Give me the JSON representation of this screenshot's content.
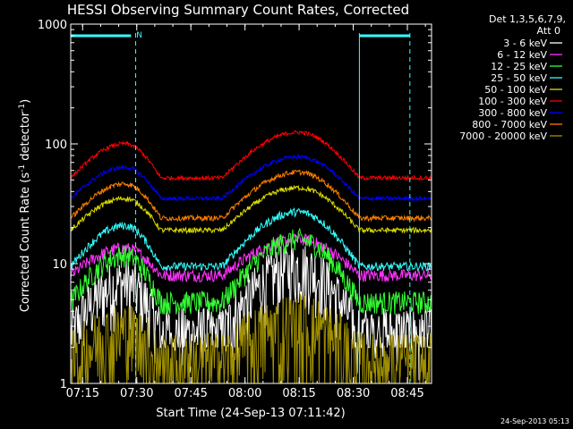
{
  "chart_data": {
    "type": "line",
    "title": "HESSI Observing Summary Count Rates, Corrected",
    "xlabel": "Start Time (24-Sep-13 07:11:42)",
    "ylabel_main": "Corrected Count Rate (s",
    "ylabel_sup1": "-1",
    "ylabel_mid": " detector",
    "ylabel_sup2": "-1",
    "ylabel_end": ")",
    "yscale": "log",
    "ylim": [
      1,
      1000
    ],
    "xlim_minutes": [
      0,
      100
    ],
    "x_ticks": [
      {
        "label": "07:15",
        "min": 3.3
      },
      {
        "label": "07:30",
        "min": 18.3
      },
      {
        "label": "07:45",
        "min": 33.3
      },
      {
        "label": "08:00",
        "min": 48.3
      },
      {
        "label": "08:15",
        "min": 63.3
      },
      {
        "label": "08:30",
        "min": 78.3
      },
      {
        "label": "08:45",
        "min": 93.3
      }
    ],
    "y_ticks": [
      {
        "label": "1",
        "value": 1
      },
      {
        "label": "10",
        "value": 10
      },
      {
        "label": "100",
        "value": 100
      },
      {
        "label": "1000",
        "value": 1000
      }
    ],
    "legend_header": [
      "Det 1,3,5,6,7,9,",
      "Att 0"
    ],
    "legend_position": "right",
    "series": [
      {
        "name": "3 - 6 keV",
        "color": "#ffffff",
        "peak": 9.5,
        "base": 2.7,
        "noise": 0.6,
        "floor": 2
      },
      {
        "name": "6 - 12 keV",
        "color": "#ff33ff",
        "peak": 16,
        "base": 8,
        "noise": 0.12,
        "floor": 0
      },
      {
        "name": "12 - 25 keV",
        "color": "#33ff33",
        "peak": 16,
        "base": 4.8,
        "noise": 0.22,
        "floor": 0
      },
      {
        "name": "25 - 50 keV",
        "color": "#33ffff",
        "peak": 27,
        "base": 9.5,
        "noise": 0.08,
        "floor": 0
      },
      {
        "name": "50 - 100 keV",
        "color": "#dddd00",
        "peak": 43,
        "base": 19,
        "noise": 0.05,
        "floor": 0
      },
      {
        "name": "100 - 300 keV",
        "color": "#ff0000",
        "peak": 125,
        "base": 52,
        "noise": 0.04,
        "floor": 0
      },
      {
        "name": "300 - 800 keV",
        "color": "#0000ff",
        "peak": 78,
        "base": 35,
        "noise": 0.04,
        "floor": 0
      },
      {
        "name": "800 - 7000 keV",
        "color": "#ff7f00",
        "peak": 58,
        "base": 24,
        "noise": 0.05,
        "floor": 0
      },
      {
        "name": "7000 - 20000 keV",
        "color": "#a09000",
        "peak": 3.2,
        "base": 1.5,
        "noise": 0.8,
        "floor": 1
      }
    ],
    "passes": [
      {
        "start_min": 0,
        "peak_min": 15,
        "end_min": 25,
        "scale": 0.75
      },
      {
        "start_min": 42,
        "peak_min": 63,
        "end_min": 80,
        "scale": 1.0
      }
    ],
    "markers": {
      "color": "#33ffff",
      "dashed_lines_min": [
        18.0,
        94.0
      ],
      "solid_lines_min": [
        80.0
      ],
      "bars": [
        {
          "start_min": 0,
          "end_min": 16.7,
          "label": "N"
        },
        {
          "start_min": 80,
          "end_min": 94
        }
      ]
    },
    "grid": false
  },
  "footer_timestamp": "24-Sep-2013 05:13"
}
